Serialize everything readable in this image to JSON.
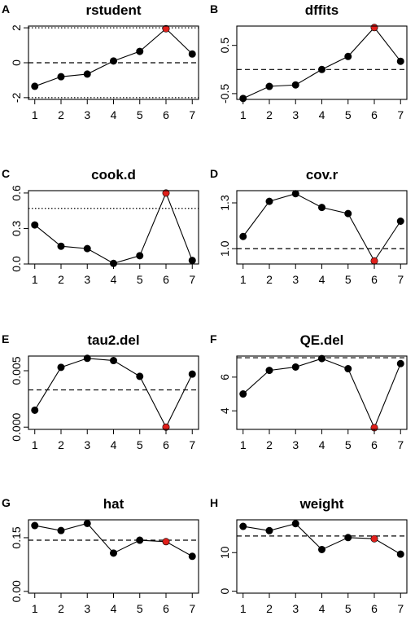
{
  "chart_data": [
    {
      "panel": "A",
      "type": "line",
      "title": "rstudent",
      "x": [
        1,
        2,
        3,
        4,
        5,
        6,
        7
      ],
      "values": [
        -1.35,
        -0.8,
        -0.65,
        0.1,
        0.65,
        1.95,
        0.5
      ],
      "xticks": [
        "1",
        "2",
        "3",
        "4",
        "5",
        "6",
        "7"
      ],
      "yticks": [
        -2,
        0,
        2
      ],
      "ytick_labels": [
        "-2",
        "0",
        "2"
      ],
      "ylim": [
        -2.1,
        2.1
      ],
      "hlines": [
        {
          "y": 2,
          "style": "dotted"
        },
        {
          "y": -2,
          "style": "dotted"
        },
        {
          "y": 0,
          "style": "dashed"
        }
      ],
      "highlight_index": 5
    },
    {
      "panel": "B",
      "type": "line",
      "title": "dffits",
      "x": [
        1,
        2,
        3,
        4,
        5,
        6,
        7
      ],
      "values": [
        -0.6,
        -0.35,
        -0.32,
        0.0,
        0.27,
        0.87,
        0.17
      ],
      "xticks": [
        "1",
        "2",
        "3",
        "4",
        "5",
        "6",
        "7"
      ],
      "yticks": [
        -0.5,
        0.5
      ],
      "ytick_labels": [
        "-0.5",
        "0.5"
      ],
      "ylim": [
        -0.62,
        0.9
      ],
      "hlines": [
        {
          "y": 0,
          "style": "dashed"
        }
      ],
      "highlight_index": 5
    },
    {
      "panel": "C",
      "type": "line",
      "title": "cook.d",
      "x": [
        1,
        2,
        3,
        4,
        5,
        6,
        7
      ],
      "values": [
        0.33,
        0.15,
        0.13,
        0.005,
        0.07,
        0.6,
        0.03
      ],
      "xticks": [
        "1",
        "2",
        "3",
        "4",
        "5",
        "6",
        "7"
      ],
      "yticks": [
        0.0,
        0.3,
        0.6
      ],
      "ytick_labels": [
        "0.0",
        "0.3",
        "0.6"
      ],
      "ylim": [
        0.0,
        0.62
      ],
      "hlines": [
        {
          "y": 0.47,
          "style": "dotted"
        }
      ],
      "highlight_index": 5
    },
    {
      "panel": "D",
      "type": "line",
      "title": "cov.r",
      "x": [
        1,
        2,
        3,
        4,
        5,
        6,
        7
      ],
      "values": [
        1.08,
        1.31,
        1.36,
        1.27,
        1.23,
        0.92,
        1.18
      ],
      "xticks": [
        "1",
        "2",
        "3",
        "4",
        "5",
        "6",
        "7"
      ],
      "yticks": [
        1.0,
        1.3
      ],
      "ytick_labels": [
        "1.0",
        "1.3"
      ],
      "ylim": [
        0.9,
        1.38
      ],
      "hlines": [
        {
          "y": 1.0,
          "style": "dashed"
        }
      ],
      "highlight_index": 5
    },
    {
      "panel": "E",
      "type": "line",
      "title": "tau2.del",
      "x": [
        1,
        2,
        3,
        4,
        5,
        6,
        7
      ],
      "values": [
        0.0015,
        0.0053,
        0.0061,
        0.0059,
        0.0045,
        0.0,
        0.0047
      ],
      "xticks": [
        "1",
        "2",
        "3",
        "4",
        "5",
        "6",
        "7"
      ],
      "yticks": [
        0.0,
        0.005
      ],
      "ytick_labels": [
        "0.000",
        "0.005"
      ],
      "ylim": [
        -0.0002,
        0.0063
      ],
      "hlines": [
        {
          "y": 0.0033,
          "style": "dashed"
        }
      ],
      "highlight_index": 5
    },
    {
      "panel": "F",
      "type": "line",
      "title": "QE.del",
      "x": [
        1,
        2,
        3,
        4,
        5,
        6,
        7
      ],
      "values": [
        5.0,
        6.4,
        6.6,
        7.1,
        6.5,
        3.0,
        6.8
      ],
      "xticks": [
        "1",
        "2",
        "3",
        "4",
        "5",
        "6",
        "7"
      ],
      "yticks": [
        4,
        6
      ],
      "ytick_labels": [
        "4",
        "6"
      ],
      "ylim": [
        2.9,
        7.25
      ],
      "hlines": [
        {
          "y": 7.15,
          "style": "dashed"
        }
      ],
      "highlight_index": 5
    },
    {
      "panel": "G",
      "type": "line",
      "title": "hat",
      "x": [
        1,
        2,
        3,
        4,
        5,
        6,
        7
      ],
      "values": [
        0.184,
        0.17,
        0.19,
        0.107,
        0.143,
        0.139,
        0.098
      ],
      "xticks": [
        "1",
        "2",
        "3",
        "4",
        "5",
        "6",
        "7"
      ],
      "yticks": [
        0.0,
        0.15
      ],
      "ytick_labels": [
        "0.00",
        "0.15"
      ],
      "ylim": [
        -0.005,
        0.2
      ],
      "hlines": [
        {
          "y": 0.143,
          "style": "dashed"
        }
      ],
      "highlight_index": 5
    },
    {
      "panel": "H",
      "type": "line",
      "title": "weight",
      "x": [
        1,
        2,
        3,
        4,
        5,
        6,
        7
      ],
      "values": [
        16.8,
        15.7,
        17.5,
        10.8,
        13.9,
        13.6,
        9.6
      ],
      "xticks": [
        "1",
        "2",
        "3",
        "4",
        "5",
        "6",
        "7"
      ],
      "yticks": [
        0,
        10
      ],
      "ytick_labels": [
        "0",
        "10"
      ],
      "ylim": [
        -0.5,
        18.5
      ],
      "hlines": [
        {
          "y": 14.3,
          "style": "dashed"
        }
      ],
      "highlight_index": 5
    }
  ],
  "colors": {
    "point": "#000000",
    "highlight": "#e0201b",
    "line": "#000000",
    "frame": "#000000"
  }
}
